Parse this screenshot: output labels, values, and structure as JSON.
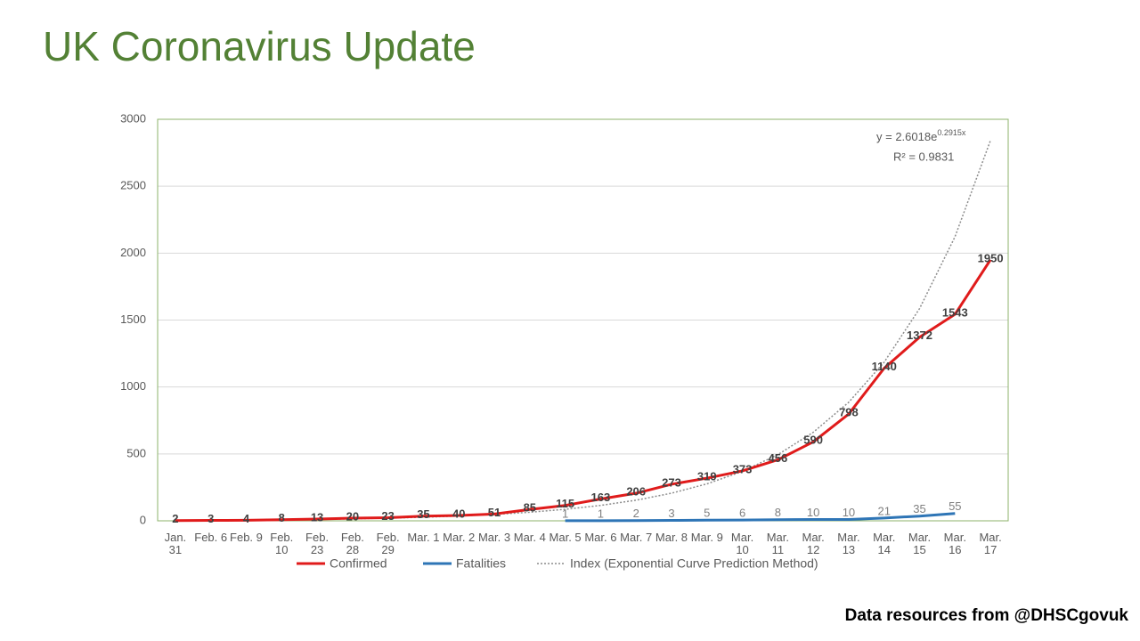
{
  "chart_data": {
    "type": "line",
    "title": "UK Coronavirus Update",
    "categories": [
      "Jan. 31",
      "Feb. 6",
      "Feb. 9",
      "Feb. 10",
      "Feb. 23",
      "Feb. 28",
      "Feb. 29",
      "Mar. 1",
      "Mar. 2",
      "Mar. 3",
      "Mar. 4",
      "Mar. 5",
      "Mar. 6",
      "Mar. 7",
      "Mar. 8",
      "Mar. 9",
      "Mar. 10",
      "Mar. 11",
      "Mar. 12",
      "Mar. 13",
      "Mar. 14",
      "Mar. 15",
      "Mar. 16",
      "Mar. 17"
    ],
    "series": [
      {
        "name": "Confirmed",
        "color": "#e01b1b",
        "style": "solid",
        "data_labels": true,
        "values": [
          2,
          3,
          4,
          8,
          13,
          20,
          23,
          35,
          40,
          51,
          85,
          115,
          163,
          206,
          273,
          319,
          373,
          456,
          590,
          798,
          1140,
          1372,
          1543,
          1950
        ]
      },
      {
        "name": "Fatalities",
        "color": "#2e75b6",
        "style": "solid",
        "data_labels": true,
        "values": [
          null,
          null,
          null,
          null,
          null,
          null,
          null,
          null,
          null,
          null,
          null,
          1,
          1,
          2,
          3,
          5,
          6,
          8,
          10,
          10,
          21,
          35,
          55,
          null
        ]
      },
      {
        "name": "Index (Exponential Curve Prediction Method)",
        "color": "#8c8c8c",
        "style": "dotted",
        "data_labels": false,
        "values": [
          3.5,
          4.7,
          6.2,
          8.4,
          11.2,
          15,
          20,
          26.8,
          35.9,
          48,
          64.2,
          86,
          115.1,
          154,
          206.2,
          275.9,
          369.3,
          494.3,
          661.6,
          885.5,
          1185,
          1586,
          2123,
          2842
        ]
      }
    ],
    "trend_equation": "y = 2.6018e",
    "trend_equation_exponent": "0.2915x",
    "trend_r_squared": "R² = 0.9831",
    "ylim": [
      0,
      3000
    ],
    "yticks": [
      0,
      500,
      1000,
      1500,
      2000,
      2500,
      3000
    ],
    "grid": true,
    "legend": "bottom",
    "source": "Data resources from @DHSCgovuk"
  }
}
